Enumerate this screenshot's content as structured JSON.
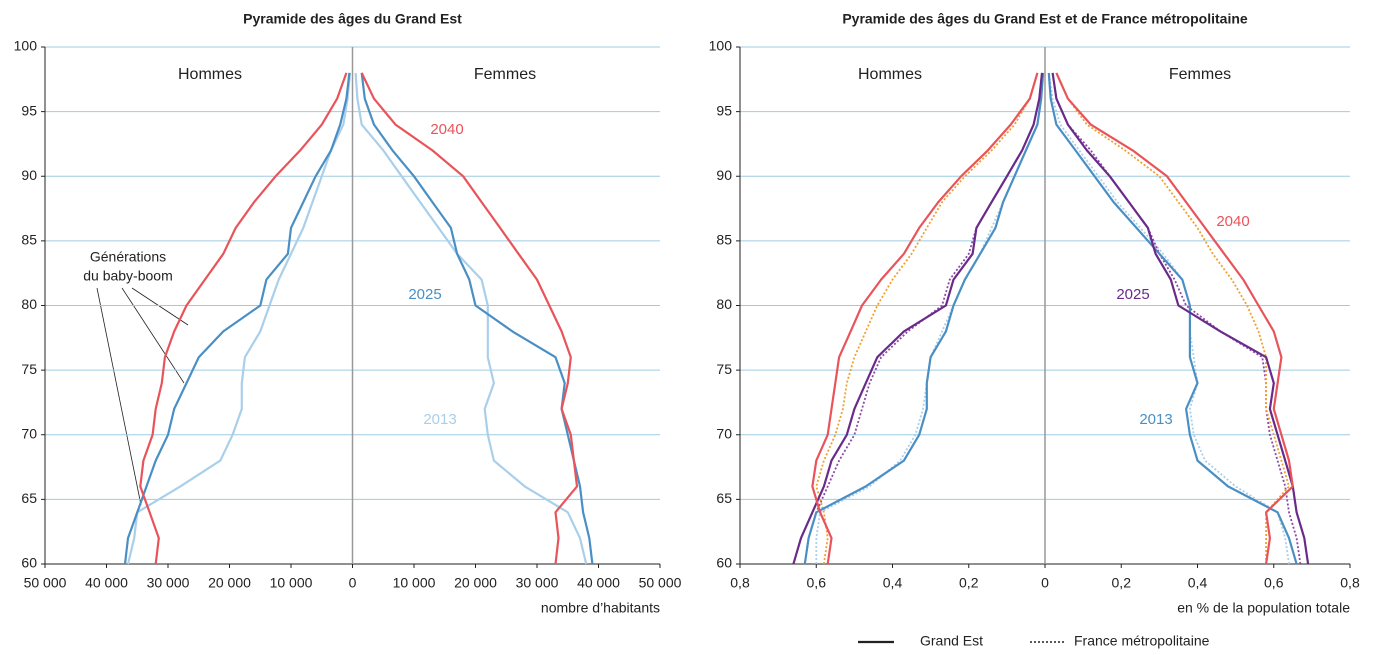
{
  "chart_data": [
    {
      "type": "line",
      "title": "Pyramide des âges du Grand Est",
      "ages": [
        60,
        62,
        64,
        66,
        68,
        70,
        72,
        74,
        76,
        78,
        80,
        82,
        84,
        86,
        88,
        90,
        92,
        94,
        96,
        98
      ],
      "ylim": [
        60,
        100
      ],
      "yticks": [
        60,
        65,
        70,
        75,
        80,
        85,
        90,
        95,
        100
      ],
      "xlim": [
        -50000,
        50000
      ],
      "xticks": [
        {
          "value": -50000,
          "label": "50 000"
        },
        {
          "value": -40000,
          "label": "40 000"
        },
        {
          "value": -30000,
          "label": "30 000"
        },
        {
          "value": -20000,
          "label": "20 000"
        },
        {
          "value": -10000,
          "label": "10 000"
        },
        0,
        {
          "value": 10000,
          "label": "10 000"
        },
        {
          "value": 20000,
          "label": "20 000"
        },
        {
          "value": 30000,
          "label": "30 000"
        },
        {
          "value": 40000,
          "label": "40 000"
        },
        {
          "value": 50000,
          "label": "50 000"
        }
      ],
      "x_label": "nombre d’habitants",
      "grid": true,
      "annotations": [
        "Hommes",
        "Femmes",
        [
          "Générations",
          "du baby-boom"
        ]
      ],
      "series": [
        {
          "name": "2013",
          "color": "#a9cfea",
          "style": "solid",
          "men": [
            -36500,
            -35500,
            -35000,
            -28000,
            -21500,
            -19500,
            -18000,
            -18000,
            -17500,
            -15000,
            -13500,
            -12000,
            -10000,
            -8000,
            -6500,
            -5000,
            -3500,
            -1500,
            -800,
            -400
          ],
          "women": [
            38000,
            37000,
            35000,
            28000,
            23000,
            22000,
            21500,
            23000,
            22000,
            22000,
            22000,
            21000,
            17000,
            14000,
            11000,
            8000,
            5000,
            1500,
            800,
            500
          ]
        },
        {
          "name": "2025",
          "color": "#4a8fc4",
          "style": "solid",
          "men": [
            -37000,
            -36500,
            -35000,
            -33500,
            -32000,
            -30000,
            -29000,
            -27000,
            -25000,
            -21000,
            -15000,
            -14000,
            -10500,
            -10000,
            -8000,
            -6000,
            -3500,
            -2000,
            -1000,
            -500
          ],
          "women": [
            39000,
            38500,
            37500,
            37000,
            36000,
            35000,
            34000,
            34500,
            33000,
            26000,
            20000,
            19000,
            17000,
            16000,
            13000,
            10000,
            6500,
            3500,
            2000,
            1500
          ]
        },
        {
          "name": "2040",
          "color": "#e8545a",
          "style": "solid",
          "men": [
            -32000,
            -31500,
            -33000,
            -34500,
            -34000,
            -32500,
            -32000,
            -31000,
            -30500,
            -29000,
            -27000,
            -24000,
            -21000,
            -19000,
            -16000,
            -12500,
            -8500,
            -5000,
            -2500,
            -1000
          ],
          "women": [
            33000,
            33500,
            33000,
            36500,
            36000,
            35500,
            34000,
            35000,
            35500,
            34000,
            32000,
            30000,
            27000,
            24000,
            21000,
            18000,
            13000,
            7000,
            3500,
            1500
          ]
        }
      ]
    },
    {
      "type": "line",
      "title": "Pyramide des âges du Grand Est et de France métropolitaine",
      "ages": [
        60,
        62,
        64,
        66,
        68,
        70,
        72,
        74,
        76,
        78,
        80,
        82,
        84,
        86,
        88,
        90,
        92,
        94,
        96,
        98
      ],
      "ylim": [
        60,
        100
      ],
      "yticks": [
        60,
        65,
        70,
        75,
        80,
        85,
        90,
        95,
        100
      ],
      "xlim": [
        -0.8,
        0.8
      ],
      "xticks": [
        {
          "value": -0.8,
          "label": "0,8"
        },
        {
          "value": -0.6,
          "label": "0,6"
        },
        {
          "value": -0.4,
          "label": "0,4"
        },
        {
          "value": -0.2,
          "label": "0,2"
        },
        0,
        {
          "value": 0.2,
          "label": "0,2"
        },
        {
          "value": 0.4,
          "label": "0,4"
        },
        {
          "value": 0.6,
          "label": "0,6"
        },
        {
          "value": 0.8,
          "label": "0,8"
        }
      ],
      "x_label": "en % de la population totale",
      "grid": true,
      "annotations": [
        "Hommes",
        "Femmes"
      ],
      "legend": [
        {
          "name": "Grand Est",
          "style": "solid"
        },
        {
          "name": "France métropolitaine",
          "style": "dotted"
        }
      ],
      "series": [
        {
          "name": "2013",
          "color": "#a9cfea",
          "style": "dotted",
          "men": [
            -0.6,
            -0.6,
            -0.59,
            -0.46,
            -0.38,
            -0.34,
            -0.32,
            -0.31,
            -0.3,
            -0.27,
            -0.24,
            -0.21,
            -0.17,
            -0.14,
            -0.11,
            -0.08,
            -0.05,
            -0.02,
            -0.01,
            -0.005
          ],
          "women": [
            0.64,
            0.63,
            0.61,
            0.5,
            0.42,
            0.39,
            0.38,
            0.4,
            0.39,
            0.38,
            0.38,
            0.36,
            0.31,
            0.25,
            0.19,
            0.14,
            0.09,
            0.04,
            0.02,
            0.01
          ]
        },
        {
          "name": "2025",
          "color": "#8a4aa8",
          "style": "dotted",
          "men": [
            -0.63,
            -0.62,
            -0.6,
            -0.57,
            -0.54,
            -0.5,
            -0.48,
            -0.46,
            -0.43,
            -0.36,
            -0.27,
            -0.25,
            -0.2,
            -0.18,
            -0.14,
            -0.1,
            -0.06,
            -0.03,
            -0.015,
            -0.008
          ],
          "women": [
            0.67,
            0.66,
            0.64,
            0.63,
            0.61,
            0.59,
            0.58,
            0.58,
            0.57,
            0.46,
            0.37,
            0.34,
            0.3,
            0.27,
            0.22,
            0.17,
            0.12,
            0.06,
            0.03,
            0.02
          ]
        },
        {
          "name": "2040",
          "color": "#f0a030",
          "style": "dotted",
          "men": [
            -0.58,
            -0.57,
            -0.58,
            -0.6,
            -0.58,
            -0.55,
            -0.53,
            -0.52,
            -0.5,
            -0.47,
            -0.44,
            -0.4,
            -0.35,
            -0.31,
            -0.27,
            -0.21,
            -0.14,
            -0.08,
            -0.04,
            -0.02
          ],
          "women": [
            0.58,
            0.58,
            0.58,
            0.64,
            0.62,
            0.6,
            0.58,
            0.58,
            0.58,
            0.56,
            0.53,
            0.49,
            0.44,
            0.4,
            0.35,
            0.3,
            0.21,
            0.11,
            0.06,
            0.03
          ]
        },
        {
          "name": "2013",
          "color": "#4a8fc4",
          "style": "solid",
          "men": [
            -0.63,
            -0.62,
            -0.6,
            -0.47,
            -0.37,
            -0.33,
            -0.31,
            -0.31,
            -0.3,
            -0.26,
            -0.24,
            -0.21,
            -0.17,
            -0.13,
            -0.11,
            -0.08,
            -0.05,
            -0.02,
            -0.01,
            -0.005
          ],
          "women": [
            0.66,
            0.64,
            0.61,
            0.48,
            0.4,
            0.38,
            0.37,
            0.4,
            0.38,
            0.38,
            0.38,
            0.36,
            0.3,
            0.24,
            0.18,
            0.13,
            0.08,
            0.03,
            0.015,
            0.01
          ]
        },
        {
          "name": "2025",
          "color": "#6a2a8a",
          "style": "solid",
          "men": [
            -0.66,
            -0.64,
            -0.61,
            -0.58,
            -0.56,
            -0.52,
            -0.5,
            -0.47,
            -0.44,
            -0.37,
            -0.26,
            -0.24,
            -0.19,
            -0.18,
            -0.14,
            -0.1,
            -0.06,
            -0.03,
            -0.015,
            -0.008
          ],
          "women": [
            0.69,
            0.68,
            0.66,
            0.65,
            0.63,
            0.61,
            0.59,
            0.6,
            0.58,
            0.46,
            0.35,
            0.33,
            0.29,
            0.27,
            0.22,
            0.17,
            0.11,
            0.06,
            0.03,
            0.02
          ]
        },
        {
          "name": "2040",
          "color": "#e8545a",
          "style": "solid",
          "men": [
            -0.57,
            -0.56,
            -0.59,
            -0.61,
            -0.6,
            -0.57,
            -0.56,
            -0.55,
            -0.54,
            -0.51,
            -0.48,
            -0.43,
            -0.37,
            -0.33,
            -0.28,
            -0.22,
            -0.15,
            -0.09,
            -0.04,
            -0.02
          ],
          "women": [
            0.58,
            0.59,
            0.58,
            0.65,
            0.64,
            0.62,
            0.6,
            0.61,
            0.62,
            0.6,
            0.56,
            0.52,
            0.47,
            0.42,
            0.37,
            0.32,
            0.23,
            0.12,
            0.06,
            0.03
          ]
        }
      ]
    }
  ]
}
